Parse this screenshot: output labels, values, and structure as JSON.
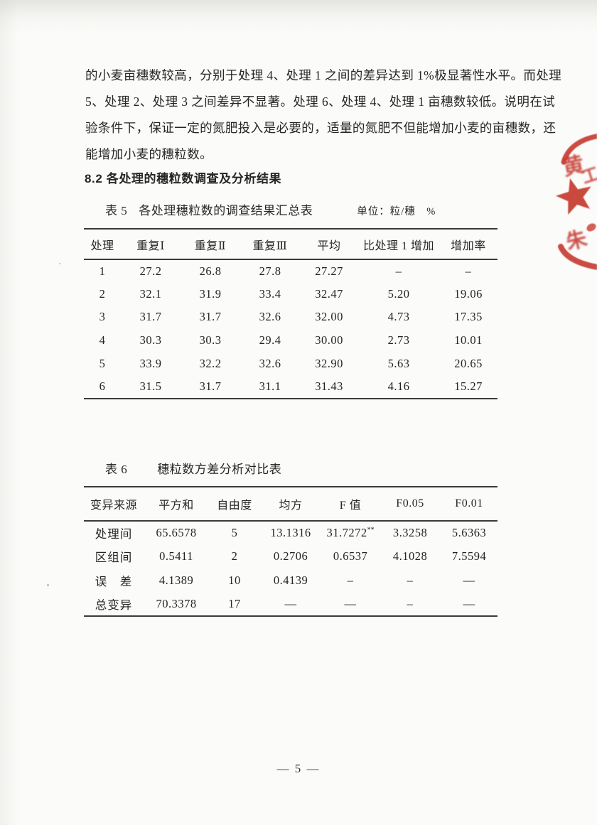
{
  "document": {
    "paragraph_lines": [
      "的小麦亩穗数较高，分别于处理 4、处理 1 之间的差异达到 1%极显著性水平。而处理",
      "5、处理 2、处理 3 之间差异不显著。处理 6、处理 4、处理 1 亩穗数较低。说明在试",
      "验条件下，保证一定的氮肥投入是必要的，适量的氮肥不但能增加小麦的亩穗数，还",
      "能增加小麦的穗粒数。"
    ],
    "section_heading": "8.2 各处理的穗粒数调查及分析结果",
    "page_number": "— 5 —"
  },
  "table5": {
    "caption_label": "表 5",
    "caption_title": "各处理穗粒数的调查结果汇总表",
    "unit_label": "单位：粒/穗　%",
    "headers": [
      "处理",
      "重复Ⅰ",
      "重复Ⅱ",
      "重复Ⅲ",
      "平均",
      "比处理 1 增加",
      "增加率"
    ],
    "rows": [
      [
        "1",
        "27.2",
        "26.8",
        "27.8",
        "27.27",
        "–",
        "–"
      ],
      [
        "2",
        "32.1",
        "31.9",
        "33.4",
        "32.47",
        "5.20",
        "19.06"
      ],
      [
        "3",
        "31.7",
        "31.7",
        "32.6",
        "32.00",
        "4.73",
        "17.35"
      ],
      [
        "4",
        "30.3",
        "30.3",
        "29.4",
        "30.00",
        "2.73",
        "10.01"
      ],
      [
        "5",
        "33.9",
        "32.2",
        "32.6",
        "32.90",
        "5.63",
        "20.65"
      ],
      [
        "6",
        "31.5",
        "31.7",
        "31.1",
        "31.43",
        "4.16",
        "15.27"
      ]
    ]
  },
  "table6": {
    "caption_label": "表 6",
    "caption_title": "穗粒数方差分析对比表",
    "headers": [
      "变异来源",
      "平方和",
      "自由度",
      "均方",
      "F 值",
      "F0.05",
      "F0.01"
    ],
    "rows": [
      [
        "处理间",
        "65.6578",
        "5",
        "13.1316",
        "31.7272**",
        "3.3258",
        "5.6363"
      ],
      [
        "区组间",
        "0.5411",
        "2",
        "0.2706",
        "0.6537",
        "4.1028",
        "7.5594"
      ],
      [
        "误　差",
        "4.1389",
        "10",
        "0.4139",
        "–",
        "–",
        "—"
      ],
      [
        "总变异",
        "70.3378",
        "17",
        "—",
        "—",
        "–",
        "—"
      ]
    ]
  },
  "stamp": {
    "color": "#c5392f",
    "char_top_left": "黄",
    "char_top_right": "工",
    "char_bottom": "朱"
  }
}
